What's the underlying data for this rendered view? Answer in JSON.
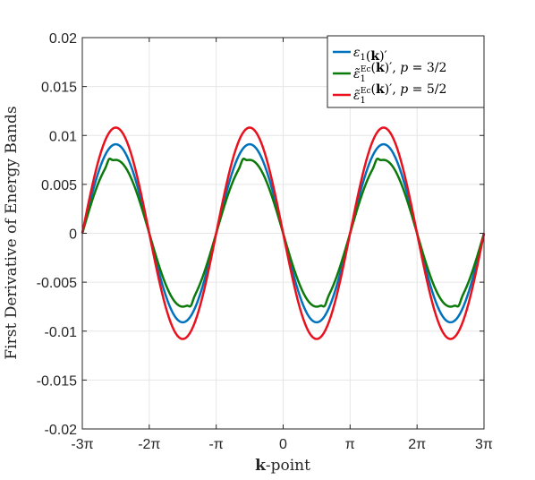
{
  "chart_data": {
    "type": "line",
    "title": "",
    "xlabel": "k-point",
    "ylabel": "First Derivative of Energy Bands",
    "xlim": [
      -9.42478,
      9.42478
    ],
    "ylim": [
      -0.02,
      0.02
    ],
    "x_ticks": [
      {
        "value": -9.42478,
        "label": "-3π"
      },
      {
        "value": -6.28319,
        "label": "-2π"
      },
      {
        "value": -3.14159,
        "label": "-π"
      },
      {
        "value": 0,
        "label": "0"
      },
      {
        "value": 3.14159,
        "label": "π"
      },
      {
        "value": 6.28319,
        "label": "2π"
      },
      {
        "value": 9.42478,
        "label": "3π"
      }
    ],
    "y_ticks": [
      {
        "value": -0.02,
        "label": "-0.02"
      },
      {
        "value": -0.015,
        "label": "-0.015"
      },
      {
        "value": -0.01,
        "label": "-0.01"
      },
      {
        "value": -0.005,
        "label": "-0.005"
      },
      {
        "value": 0,
        "label": "0"
      },
      {
        "value": 0.005,
        "label": "0.005"
      },
      {
        "value": 0.01,
        "label": "0.01"
      },
      {
        "value": 0.015,
        "label": "0.015"
      },
      {
        "value": 0.02,
        "label": "0.02"
      }
    ],
    "grid": true,
    "legend_position": "top-right",
    "series": [
      {
        "name": "ε1(k)′",
        "color": "#0072bd",
        "amplitude": 0.0091,
        "kink": false
      },
      {
        "name": "ε̃1^Ec(k)′, p = 3/2",
        "color": "#0b7a0b",
        "amplitude": 0.0075,
        "kink": true
      },
      {
        "name": "ε̃1^Ec(k)′, p = 5/2",
        "color": "#e8121e",
        "amplitude": 0.0108,
        "kink": false
      }
    ]
  }
}
